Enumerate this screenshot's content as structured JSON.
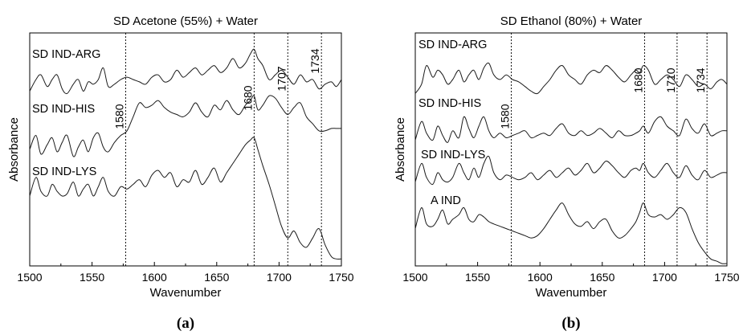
{
  "chart_data": [
    {
      "type": "line",
      "panel": "(a)",
      "title": "SD Acetone (55%) + Water",
      "xlabel": "Wavenumber",
      "ylabel": "Absorbance",
      "xlim": [
        1500,
        1750
      ],
      "xticks": [
        "1500",
        "1550",
        "1600",
        "1650",
        "1700",
        "1750"
      ],
      "reference_lines": [
        {
          "x": 1577,
          "label": "1580"
        },
        {
          "x": 1680,
          "label": "1680"
        },
        {
          "x": 1707,
          "label": "1707"
        },
        {
          "x": 1734,
          "label": "1734"
        }
      ],
      "series": [
        {
          "name": "SD IND-ARG",
          "x": [
            1500,
            1505,
            1509,
            1514,
            1518,
            1522,
            1526,
            1530,
            1535,
            1539,
            1543,
            1547,
            1551,
            1555,
            1559,
            1563,
            1568,
            1573,
            1578,
            1583,
            1588,
            1593,
            1598,
            1603,
            1608,
            1613,
            1618,
            1623,
            1628,
            1633,
            1638,
            1643,
            1648,
            1653,
            1658,
            1663,
            1668,
            1673,
            1677,
            1680,
            1683,
            1687,
            1692,
            1697,
            1702,
            1707,
            1712,
            1717,
            1722,
            1727,
            1732,
            1737,
            1742,
            1746,
            1750
          ],
          "y": [
            0.75,
            0.8,
            0.82,
            0.77,
            0.8,
            0.82,
            0.76,
            0.74,
            0.78,
            0.8,
            0.75,
            0.79,
            0.78,
            0.8,
            0.85,
            0.77,
            0.78,
            0.8,
            0.81,
            0.8,
            0.79,
            0.78,
            0.81,
            0.82,
            0.79,
            0.8,
            0.84,
            0.81,
            0.83,
            0.85,
            0.82,
            0.84,
            0.86,
            0.83,
            0.85,
            0.89,
            0.85,
            0.87,
            0.91,
            0.93,
            0.89,
            0.86,
            0.8,
            0.82,
            0.84,
            0.81,
            0.78,
            0.82,
            0.79,
            0.8,
            0.76,
            0.78,
            0.79,
            0.77,
            0.8
          ]
        },
        {
          "name": "SD IND-HIS",
          "x": [
            1500,
            1505,
            1509,
            1514,
            1518,
            1522,
            1526,
            1530,
            1535,
            1539,
            1543,
            1547,
            1551,
            1555,
            1559,
            1563,
            1568,
            1573,
            1578,
            1583,
            1588,
            1593,
            1598,
            1603,
            1608,
            1613,
            1618,
            1623,
            1628,
            1633,
            1638,
            1643,
            1648,
            1653,
            1658,
            1663,
            1668,
            1673,
            1677,
            1680,
            1683,
            1687,
            1692,
            1697,
            1702,
            1707,
            1712,
            1717,
            1722,
            1727,
            1732,
            1737,
            1742,
            1746,
            1750
          ],
          "y": [
            0.5,
            0.56,
            0.48,
            0.52,
            0.55,
            0.49,
            0.53,
            0.56,
            0.47,
            0.51,
            0.54,
            0.49,
            0.55,
            0.57,
            0.51,
            0.49,
            0.53,
            0.56,
            0.58,
            0.64,
            0.7,
            0.68,
            0.69,
            0.71,
            0.68,
            0.66,
            0.65,
            0.64,
            0.66,
            0.7,
            0.66,
            0.64,
            0.69,
            0.67,
            0.71,
            0.67,
            0.65,
            0.69,
            0.71,
            0.73,
            0.67,
            0.69,
            0.73,
            0.72,
            0.68,
            0.65,
            0.68,
            0.7,
            0.64,
            0.61,
            0.58,
            0.58,
            0.59,
            0.59,
            0.59
          ]
        },
        {
          "name": "SD IND-LYS",
          "x": [
            1500,
            1505,
            1509,
            1514,
            1518,
            1522,
            1526,
            1530,
            1535,
            1539,
            1543,
            1547,
            1551,
            1555,
            1559,
            1563,
            1568,
            1573,
            1578,
            1583,
            1588,
            1593,
            1598,
            1603,
            1608,
            1613,
            1618,
            1623,
            1628,
            1633,
            1638,
            1643,
            1648,
            1653,
            1658,
            1663,
            1668,
            1673,
            1677,
            1680,
            1683,
            1687,
            1692,
            1697,
            1702,
            1707,
            1712,
            1717,
            1722,
            1727,
            1732,
            1737,
            1742,
            1746,
            1750
          ],
          "y": [
            0.3,
            0.38,
            0.32,
            0.3,
            0.35,
            0.32,
            0.3,
            0.31,
            0.36,
            0.3,
            0.33,
            0.35,
            0.3,
            0.34,
            0.38,
            0.32,
            0.3,
            0.34,
            0.33,
            0.35,
            0.37,
            0.34,
            0.39,
            0.41,
            0.38,
            0.4,
            0.34,
            0.37,
            0.36,
            0.41,
            0.35,
            0.38,
            0.42,
            0.36,
            0.4,
            0.44,
            0.48,
            0.52,
            0.54,
            0.55,
            0.5,
            0.43,
            0.35,
            0.26,
            0.17,
            0.12,
            0.15,
            0.1,
            0.08,
            0.12,
            0.16,
            0.09,
            0.04,
            0.03,
            0.03
          ]
        }
      ]
    },
    {
      "type": "line",
      "panel": "(b)",
      "title": "SD Ethanol (80%) + Water",
      "xlabel": "Wavenumber",
      "ylabel": "Absorbance",
      "xlim": [
        1500,
        1750
      ],
      "xticks": [
        "1500",
        "1550",
        "1600",
        "1650",
        "1700",
        "1750"
      ],
      "reference_lines": [
        {
          "x": 1577,
          "label": "1580"
        },
        {
          "x": 1684,
          "label": "1680"
        },
        {
          "x": 1710,
          "label": "1710"
        },
        {
          "x": 1734,
          "label": "1734"
        }
      ],
      "series": [
        {
          "name": "SD IND-ARG",
          "x": [
            1500,
            1505,
            1509,
            1514,
            1518,
            1522,
            1526,
            1530,
            1535,
            1539,
            1543,
            1547,
            1551,
            1555,
            1559,
            1563,
            1568,
            1573,
            1578,
            1583,
            1588,
            1593,
            1598,
            1603,
            1608,
            1613,
            1618,
            1623,
            1628,
            1633,
            1638,
            1643,
            1648,
            1653,
            1658,
            1663,
            1668,
            1673,
            1677,
            1680,
            1683,
            1687,
            1692,
            1697,
            1702,
            1707,
            1712,
            1717,
            1722,
            1727,
            1732,
            1737,
            1742,
            1746,
            1750
          ],
          "y": [
            0.74,
            0.78,
            0.86,
            0.81,
            0.84,
            0.82,
            0.78,
            0.8,
            0.84,
            0.79,
            0.82,
            0.84,
            0.8,
            0.85,
            0.87,
            0.82,
            0.8,
            0.82,
            0.8,
            0.79,
            0.77,
            0.75,
            0.74,
            0.77,
            0.8,
            0.84,
            0.86,
            0.82,
            0.8,
            0.78,
            0.82,
            0.84,
            0.83,
            0.86,
            0.84,
            0.81,
            0.79,
            0.82,
            0.84,
            0.83,
            0.86,
            0.84,
            0.78,
            0.8,
            0.82,
            0.8,
            0.77,
            0.82,
            0.8,
            0.77,
            0.78,
            0.76,
            0.79,
            0.8,
            0.78
          ]
        },
        {
          "name": "SD IND-HIS",
          "x": [
            1500,
            1505,
            1509,
            1514,
            1518,
            1522,
            1526,
            1530,
            1535,
            1539,
            1543,
            1547,
            1551,
            1555,
            1559,
            1563,
            1568,
            1573,
            1578,
            1583,
            1588,
            1593,
            1598,
            1603,
            1608,
            1613,
            1618,
            1623,
            1628,
            1633,
            1638,
            1643,
            1648,
            1653,
            1658,
            1663,
            1668,
            1673,
            1677,
            1680,
            1683,
            1687,
            1692,
            1697,
            1702,
            1707,
            1712,
            1717,
            1722,
            1727,
            1732,
            1737,
            1742,
            1746,
            1750
          ],
          "y": [
            0.54,
            0.62,
            0.57,
            0.54,
            0.6,
            0.56,
            0.53,
            0.58,
            0.55,
            0.64,
            0.59,
            0.55,
            0.6,
            0.64,
            0.58,
            0.55,
            0.57,
            0.55,
            0.56,
            0.57,
            0.58,
            0.55,
            0.56,
            0.57,
            0.56,
            0.59,
            0.61,
            0.57,
            0.56,
            0.58,
            0.56,
            0.57,
            0.59,
            0.57,
            0.55,
            0.58,
            0.56,
            0.56,
            0.57,
            0.58,
            0.6,
            0.57,
            0.62,
            0.64,
            0.6,
            0.58,
            0.56,
            0.63,
            0.59,
            0.57,
            0.61,
            0.56,
            0.57,
            0.58,
            0.58
          ]
        },
        {
          "name": "SD IND-LYS",
          "x": [
            1500,
            1505,
            1509,
            1514,
            1518,
            1522,
            1526,
            1530,
            1535,
            1539,
            1543,
            1547,
            1551,
            1555,
            1559,
            1563,
            1568,
            1573,
            1578,
            1583,
            1588,
            1593,
            1598,
            1603,
            1608,
            1613,
            1618,
            1623,
            1628,
            1633,
            1638,
            1643,
            1648,
            1653,
            1658,
            1663,
            1668,
            1673,
            1677,
            1680,
            1683,
            1687,
            1692,
            1697,
            1702,
            1707,
            1712,
            1717,
            1722,
            1727,
            1732,
            1737,
            1742,
            1746,
            1750
          ],
          "y": [
            0.36,
            0.44,
            0.38,
            0.35,
            0.4,
            0.37,
            0.36,
            0.38,
            0.44,
            0.4,
            0.37,
            0.42,
            0.38,
            0.44,
            0.47,
            0.4,
            0.37,
            0.39,
            0.38,
            0.37,
            0.38,
            0.4,
            0.37,
            0.39,
            0.41,
            0.38,
            0.4,
            0.42,
            0.39,
            0.41,
            0.44,
            0.4,
            0.42,
            0.45,
            0.43,
            0.4,
            0.38,
            0.41,
            0.42,
            0.41,
            0.44,
            0.4,
            0.38,
            0.41,
            0.44,
            0.4,
            0.38,
            0.43,
            0.39,
            0.37,
            0.41,
            0.38,
            0.39,
            0.4,
            0.4
          ]
        },
        {
          "name": "A IND",
          "x": [
            1500,
            1505,
            1509,
            1514,
            1518,
            1522,
            1526,
            1530,
            1535,
            1539,
            1543,
            1547,
            1551,
            1555,
            1559,
            1563,
            1568,
            1573,
            1578,
            1583,
            1588,
            1593,
            1598,
            1603,
            1608,
            1613,
            1618,
            1623,
            1628,
            1633,
            1638,
            1643,
            1648,
            1653,
            1658,
            1663,
            1668,
            1673,
            1677,
            1680,
            1683,
            1687,
            1692,
            1697,
            1702,
            1707,
            1712,
            1717,
            1722,
            1727,
            1732,
            1737,
            1742,
            1746,
            1750
          ],
          "y": [
            0.16,
            0.25,
            0.18,
            0.17,
            0.2,
            0.24,
            0.18,
            0.2,
            0.22,
            0.25,
            0.2,
            0.19,
            0.22,
            0.21,
            0.19,
            0.18,
            0.17,
            0.16,
            0.15,
            0.14,
            0.13,
            0.12,
            0.13,
            0.16,
            0.2,
            0.24,
            0.27,
            0.22,
            0.18,
            0.17,
            0.19,
            0.16,
            0.19,
            0.2,
            0.15,
            0.12,
            0.13,
            0.16,
            0.19,
            0.23,
            0.27,
            0.22,
            0.21,
            0.22,
            0.2,
            0.22,
            0.25,
            0.23,
            0.16,
            0.1,
            0.06,
            0.03,
            0.02,
            0.01,
            0.01
          ]
        }
      ]
    }
  ]
}
